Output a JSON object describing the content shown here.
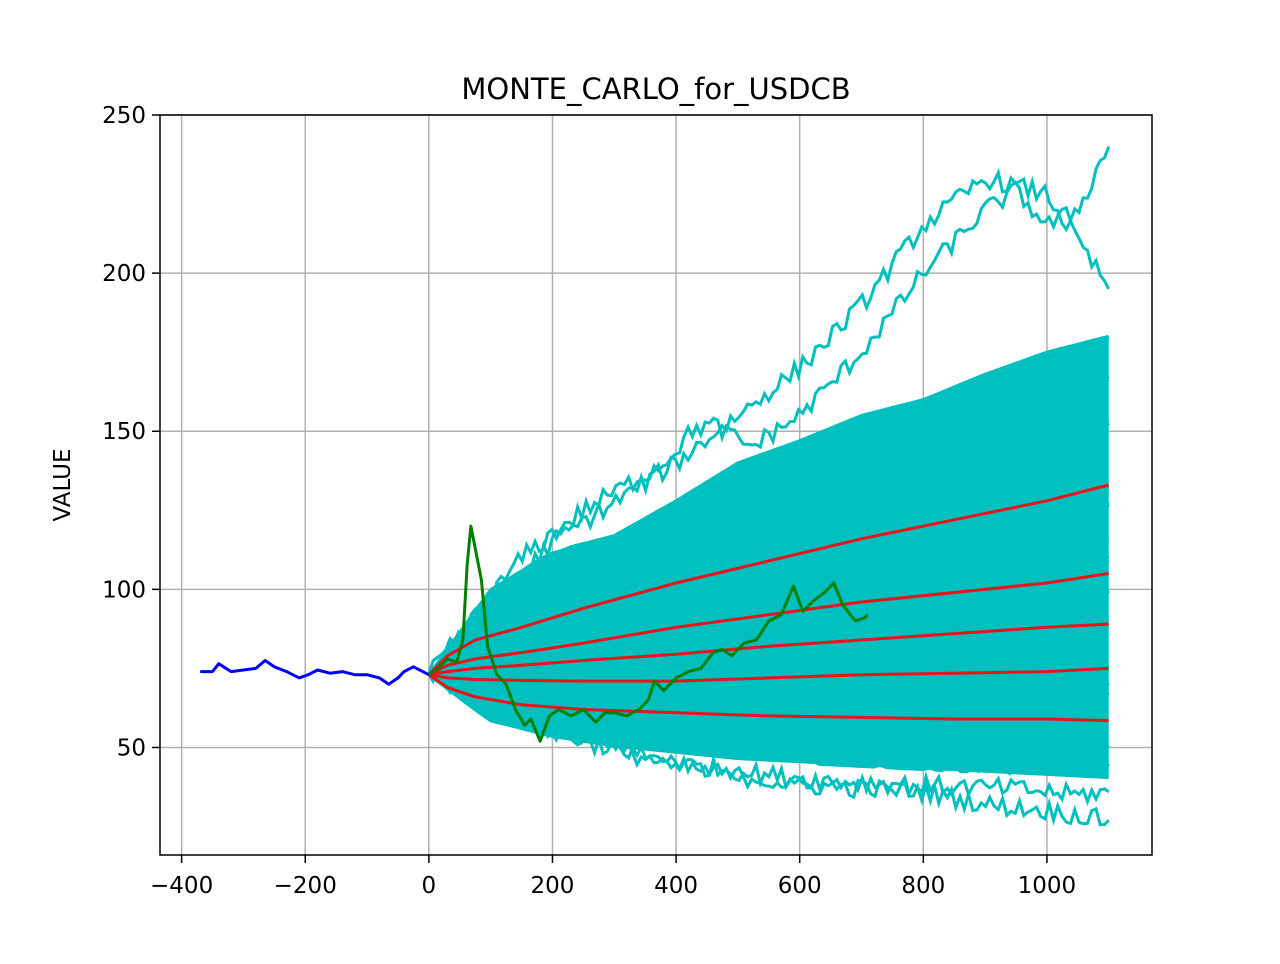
{
  "chart_data": {
    "type": "line",
    "title": "MONTE_CARLO_for_USDCB",
    "xlabel": "",
    "ylabel": "VALUE",
    "xlim": [
      -435,
      1170
    ],
    "ylim": [
      16,
      250
    ],
    "x_ticks": [
      -400,
      -200,
      0,
      200,
      400,
      600,
      800,
      1000
    ],
    "x_tick_labels": [
      "−400",
      "−200",
      "0",
      "200",
      "400",
      "600",
      "800",
      "1000"
    ],
    "y_ticks": [
      50,
      100,
      150,
      200,
      250
    ],
    "y_tick_labels": [
      "50",
      "100",
      "150",
      "200",
      "250"
    ],
    "grid": true,
    "colors": {
      "history": "#0000ff",
      "actual": "#008000",
      "simulations": "#00bfbf",
      "percentiles": "#e8141a"
    },
    "history": {
      "x": [
        -370,
        -350,
        -340,
        -320,
        -300,
        -280,
        -265,
        -250,
        -230,
        -210,
        -195,
        -180,
        -160,
        -140,
        -120,
        -100,
        -80,
        -65,
        -50,
        -40,
        -25,
        -10,
        0
      ],
      "y": [
        74,
        74,
        76.5,
        74,
        74.5,
        75,
        77.5,
        75.5,
        74,
        72,
        73,
        74.5,
        73.5,
        74,
        73,
        73,
        72,
        70,
        72,
        74,
        75.5,
        74,
        73
      ]
    },
    "actual": {
      "x": [
        0,
        15,
        30,
        45,
        55,
        62,
        68,
        75,
        85,
        95,
        110,
        125,
        140,
        155,
        165,
        180,
        195,
        210,
        230,
        250,
        270,
        285,
        300,
        320,
        340,
        355,
        365,
        380,
        400,
        420,
        440,
        460,
        475,
        490,
        510,
        530,
        550,
        570,
        590,
        605,
        620,
        640,
        655,
        670,
        690,
        705,
        710
      ],
      "y": [
        73,
        75,
        78,
        77,
        84,
        108,
        120,
        113,
        103,
        82,
        73,
        70,
        62,
        57,
        59,
        52,
        60,
        62,
        60,
        62,
        58,
        61,
        61,
        60,
        62,
        65,
        71,
        68,
        72,
        74,
        75,
        80,
        81,
        79,
        83,
        84,
        90,
        92,
        101,
        93,
        96,
        99,
        102,
        95,
        90,
        91,
        92
      ]
    },
    "percentiles": {
      "x": [
        0,
        30,
        75,
        150,
        250,
        400,
        550,
        700,
        850,
        1000,
        1100
      ],
      "series": [
        {
          "y": [
            73,
            79,
            84,
            88,
            94,
            102,
            109,
            116,
            122,
            128,
            133
          ]
        },
        {
          "y": [
            73,
            76,
            78,
            80,
            83,
            88,
            92,
            96,
            99,
            102,
            105
          ]
        },
        {
          "y": [
            73,
            74,
            75,
            76,
            77.5,
            79.5,
            82,
            84,
            86,
            88,
            89
          ]
        },
        {
          "y": [
            73,
            72,
            71.5,
            71.2,
            71,
            71,
            72,
            73,
            73.5,
            74,
            75
          ]
        },
        {
          "y": [
            73,
            69,
            66,
            63.5,
            62,
            61,
            60,
            59.5,
            59,
            59,
            58.5
          ]
        }
      ]
    },
    "simulations": {
      "x_start": 0,
      "x_end": 1100,
      "y_start": 73,
      "envelope": {
        "x": [
          0,
          100,
          200,
          300,
          400,
          500,
          600,
          700,
          800,
          900,
          1000,
          1100
        ],
        "upper": [
          73,
          100,
          112,
          117,
          128,
          140,
          147,
          155,
          160,
          168,
          175,
          180
        ],
        "lower": [
          73,
          58,
          53,
          50,
          48,
          46,
          45,
          44,
          43,
          42,
          41,
          40
        ]
      },
      "outlier_paths": [
        {
          "x": [
            0,
            150,
            250,
            380,
            430,
            460,
            520,
            600,
            700,
            800,
            900,
            950,
            1000,
            1050,
            1080,
            1100
          ],
          "y": [
            73,
            110,
            125,
            140,
            151,
            152,
            145,
            155,
            175,
            200,
            220,
            226,
            215,
            220,
            232,
            240
          ]
        },
        {
          "x": [
            0,
            200,
            400,
            500,
            600,
            700,
            800,
            900,
            1000,
            1100
          ],
          "y": [
            73,
            115,
            140,
            155,
            170,
            190,
            215,
            230,
            225,
            195
          ]
        },
        {
          "x": [
            0,
            200,
            400,
            600,
            800,
            950,
            1050,
            1100
          ],
          "y": [
            73,
            55,
            45,
            40,
            38,
            37,
            35,
            36
          ]
        },
        {
          "x": [
            0,
            200,
            400,
            600,
            800,
            900,
            1000,
            1100
          ],
          "y": [
            73,
            55,
            44,
            38,
            36,
            32,
            30,
            27
          ]
        }
      ]
    }
  }
}
